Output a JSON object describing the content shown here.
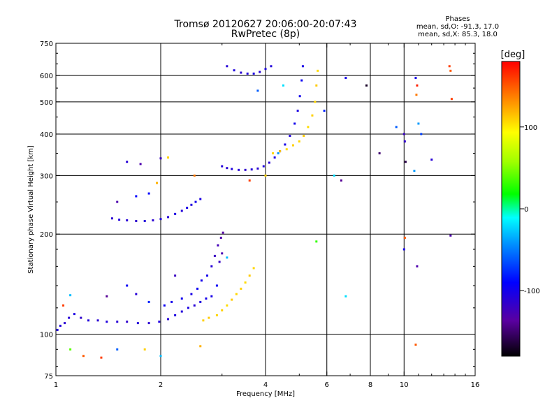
{
  "header": {
    "title_line1": "Tromsø 20120627 20:06:00-20:07:43",
    "title_line2": "RwPretec (8p)"
  },
  "stats": {
    "heading": "Phases",
    "line_o": "mean, sd,O: -91.3, 17.0",
    "line_x": "mean, sd,X:  85.3, 18.0"
  },
  "colorbar": {
    "unit_label": "[deg]",
    "ticks": [
      {
        "value": 100,
        "label": "100"
      },
      {
        "value": 0,
        "label": "0"
      },
      {
        "value": -100,
        "label": "-100"
      }
    ],
    "range": [
      -180,
      180
    ]
  },
  "chart_data": {
    "type": "scatter",
    "xlabel": "Frequency [MHz]",
    "ylabel": "Stationary phase Virtual Height [km]",
    "xscale": "log",
    "yscale": "log",
    "xlim": [
      1,
      16
    ],
    "ylim": [
      75,
      750
    ],
    "xticks": [
      {
        "value": 1,
        "label": "1"
      },
      {
        "value": 2,
        "label": "2"
      },
      {
        "value": 4,
        "label": "4"
      },
      {
        "value": 6,
        "label": "6"
      },
      {
        "value": 8,
        "label": "8"
      },
      {
        "value": 10,
        "label": "10"
      },
      {
        "value": 16,
        "label": "16"
      }
    ],
    "yticks": [
      {
        "value": 75,
        "label": "75"
      },
      {
        "value": 100,
        "label": "100"
      },
      {
        "value": 200,
        "label": "200"
      },
      {
        "value": 300,
        "label": "300"
      },
      {
        "value": 400,
        "label": "400"
      },
      {
        "value": 500,
        "label": "500"
      },
      {
        "value": 600,
        "label": "600"
      },
      {
        "value": 750,
        "label": "750"
      }
    ],
    "grid_x": [
      2,
      4,
      6,
      8,
      10
    ],
    "grid_y": [
      100,
      200,
      300,
      400,
      500,
      600
    ],
    "color_by": "phase [deg]",
    "series": [
      {
        "points": [
          [
            1.01,
            103,
            -105
          ],
          [
            1.03,
            106,
            -108
          ],
          [
            1.06,
            108,
            -112
          ],
          [
            1.09,
            112,
            -110
          ],
          [
            1.13,
            115,
            -104
          ],
          [
            1.18,
            112,
            -115
          ],
          [
            1.24,
            110,
            -108
          ],
          [
            1.32,
            110,
            -112
          ],
          [
            1.4,
            109,
            -106
          ],
          [
            1.5,
            109,
            -110
          ],
          [
            1.6,
            109,
            -114
          ],
          [
            1.72,
            108,
            -108
          ],
          [
            1.85,
            108,
            -112
          ],
          [
            1.98,
            109,
            -106
          ],
          [
            2.1,
            111,
            -110
          ],
          [
            2.2,
            114,
            -105
          ],
          [
            2.3,
            117,
            -108
          ],
          [
            2.4,
            120,
            -104
          ],
          [
            2.5,
            122,
            -110
          ],
          [
            2.6,
            125,
            -106
          ],
          [
            2.7,
            128,
            -100
          ],
          [
            2.8,
            130,
            -102
          ]
        ]
      },
      {
        "points": [
          [
            2.05,
            122,
            -96
          ],
          [
            2.15,
            125,
            -100
          ],
          [
            2.3,
            128,
            -98
          ],
          [
            2.45,
            132,
            -102
          ],
          [
            2.55,
            137,
            -96
          ],
          [
            2.62,
            145,
            -100
          ]
        ]
      },
      {
        "points": [
          [
            1.45,
            223,
            -112
          ],
          [
            1.52,
            221,
            -108
          ],
          [
            1.6,
            220,
            -110
          ],
          [
            1.7,
            219,
            -114
          ],
          [
            1.8,
            219,
            -108
          ],
          [
            1.9,
            220,
            -112
          ],
          [
            2.0,
            222,
            -106
          ],
          [
            2.1,
            225,
            -110
          ],
          [
            2.2,
            230,
            -104
          ],
          [
            2.3,
            235,
            -108
          ],
          [
            2.38,
            240,
            -102
          ],
          [
            2.45,
            245,
            -106
          ],
          [
            2.52,
            250,
            -100
          ],
          [
            2.6,
            255,
            -104
          ]
        ]
      },
      {
        "points": [
          [
            2.72,
            150,
            -100
          ],
          [
            2.8,
            160,
            -110
          ],
          [
            2.86,
            172,
            -120
          ],
          [
            2.92,
            185,
            -125
          ],
          [
            2.98,
            195,
            -130
          ],
          [
            3.02,
            202,
            -135
          ],
          [
            2.9,
            140,
            -95
          ],
          [
            2.95,
            165,
            -118
          ],
          [
            3.0,
            175,
            -128
          ]
        ]
      },
      {
        "points": [
          [
            2.65,
            110,
            110
          ],
          [
            2.75,
            112,
            112
          ],
          [
            2.9,
            114,
            108
          ],
          [
            3.0,
            118,
            110
          ],
          [
            3.1,
            122,
            106
          ],
          [
            3.2,
            127,
            112
          ],
          [
            3.3,
            132,
            108
          ],
          [
            3.4,
            137,
            110
          ],
          [
            3.5,
            143,
            106
          ],
          [
            3.6,
            150,
            112
          ],
          [
            3.7,
            158,
            108
          ]
        ]
      },
      {
        "points": [
          [
            3.0,
            320,
            -108
          ],
          [
            3.1,
            316,
            -112
          ],
          [
            3.2,
            314,
            -106
          ],
          [
            3.35,
            312,
            -110
          ],
          [
            3.5,
            312,
            -114
          ],
          [
            3.65,
            313,
            -108
          ],
          [
            3.8,
            315,
            -112
          ],
          [
            3.95,
            320,
            -106
          ],
          [
            4.1,
            328,
            -110
          ],
          [
            4.25,
            340,
            -104
          ],
          [
            4.4,
            355,
            -108
          ],
          [
            4.55,
            372,
            -102
          ],
          [
            4.7,
            395,
            -106
          ],
          [
            4.85,
            430,
            -100
          ],
          [
            4.95,
            470,
            -104
          ],
          [
            5.02,
            520,
            -100
          ],
          [
            5.08,
            580,
            -96
          ],
          [
            5.12,
            640,
            -102
          ]
        ]
      },
      {
        "points": [
          [
            4.2,
            350,
            108
          ],
          [
            4.4,
            355,
            112
          ],
          [
            4.6,
            360,
            106
          ],
          [
            4.8,
            370,
            110
          ],
          [
            5.0,
            380,
            108
          ],
          [
            5.15,
            395,
            112
          ],
          [
            5.3,
            420,
            106
          ],
          [
            5.45,
            455,
            110
          ],
          [
            5.55,
            500,
            108
          ],
          [
            5.6,
            560,
            112
          ],
          [
            5.65,
            620,
            106
          ]
        ]
      },
      {
        "points": [
          [
            3.1,
            640,
            -110
          ],
          [
            3.25,
            622,
            -106
          ],
          [
            3.4,
            612,
            -112
          ],
          [
            3.55,
            608,
            -108
          ],
          [
            3.7,
            608,
            -104
          ],
          [
            3.85,
            615,
            -110
          ],
          [
            4.0,
            628,
            -106
          ],
          [
            4.15,
            640,
            -108
          ]
        ]
      },
      {
        "points": [
          [
            1.1,
            90,
            40
          ],
          [
            1.2,
            86,
            150
          ],
          [
            1.35,
            85,
            160
          ],
          [
            1.5,
            90,
            -60
          ],
          [
            1.8,
            90,
            110
          ],
          [
            2.0,
            86,
            -30
          ],
          [
            2.6,
            92,
            120
          ],
          [
            5.6,
            190,
            30
          ],
          [
            6.3,
            300,
            -20
          ],
          [
            6.6,
            290,
            -140
          ],
          [
            6.8,
            590,
            -100
          ],
          [
            7.8,
            560,
            -170
          ],
          [
            8.5,
            350,
            -150
          ],
          [
            9.5,
            420,
            -60
          ],
          [
            10.0,
            400,
            -120
          ],
          [
            10.05,
            380,
            -115
          ],
          [
            10.1,
            330,
            -160
          ],
          [
            10.0,
            180,
            -100
          ],
          [
            10.05,
            195,
            150
          ],
          [
            10.8,
            590,
            -100
          ],
          [
            10.9,
            560,
            170
          ],
          [
            10.85,
            525,
            140
          ],
          [
            11.0,
            430,
            -40
          ],
          [
            11.2,
            400,
            -70
          ],
          [
            12.0,
            335,
            -110
          ],
          [
            13.5,
            640,
            160
          ],
          [
            13.6,
            620,
            150
          ],
          [
            13.7,
            510,
            160
          ],
          [
            13.6,
            198,
            -130
          ],
          [
            10.7,
            310,
            -40
          ],
          [
            10.9,
            160,
            -130
          ],
          [
            10.8,
            93,
            150
          ],
          [
            5.9,
            470,
            -80
          ],
          [
            6.8,
            130,
            -20
          ],
          [
            1.1,
            131,
            -30
          ],
          [
            1.05,
            122,
            160
          ],
          [
            1.6,
            330,
            -110
          ],
          [
            1.75,
            325,
            -130
          ],
          [
            2.0,
            338,
            -120
          ],
          [
            2.1,
            340,
            110
          ],
          [
            1.95,
            285,
            120
          ],
          [
            2.5,
            300,
            140
          ],
          [
            1.5,
            250,
            -130
          ],
          [
            1.7,
            260,
            -90
          ],
          [
            1.85,
            265,
            -90
          ],
          [
            3.1,
            170,
            -30
          ],
          [
            2.2,
            150,
            -120
          ],
          [
            1.6,
            140,
            -95
          ],
          [
            1.7,
            132,
            -110
          ],
          [
            1.85,
            125,
            -80
          ],
          [
            1.4,
            130,
            -140
          ],
          [
            4.5,
            560,
            -20
          ],
          [
            4.35,
            350,
            -40
          ],
          [
            3.8,
            540,
            -60
          ],
          [
            3.6,
            290,
            160
          ],
          [
            4.0,
            300,
            110
          ]
        ]
      }
    ]
  }
}
